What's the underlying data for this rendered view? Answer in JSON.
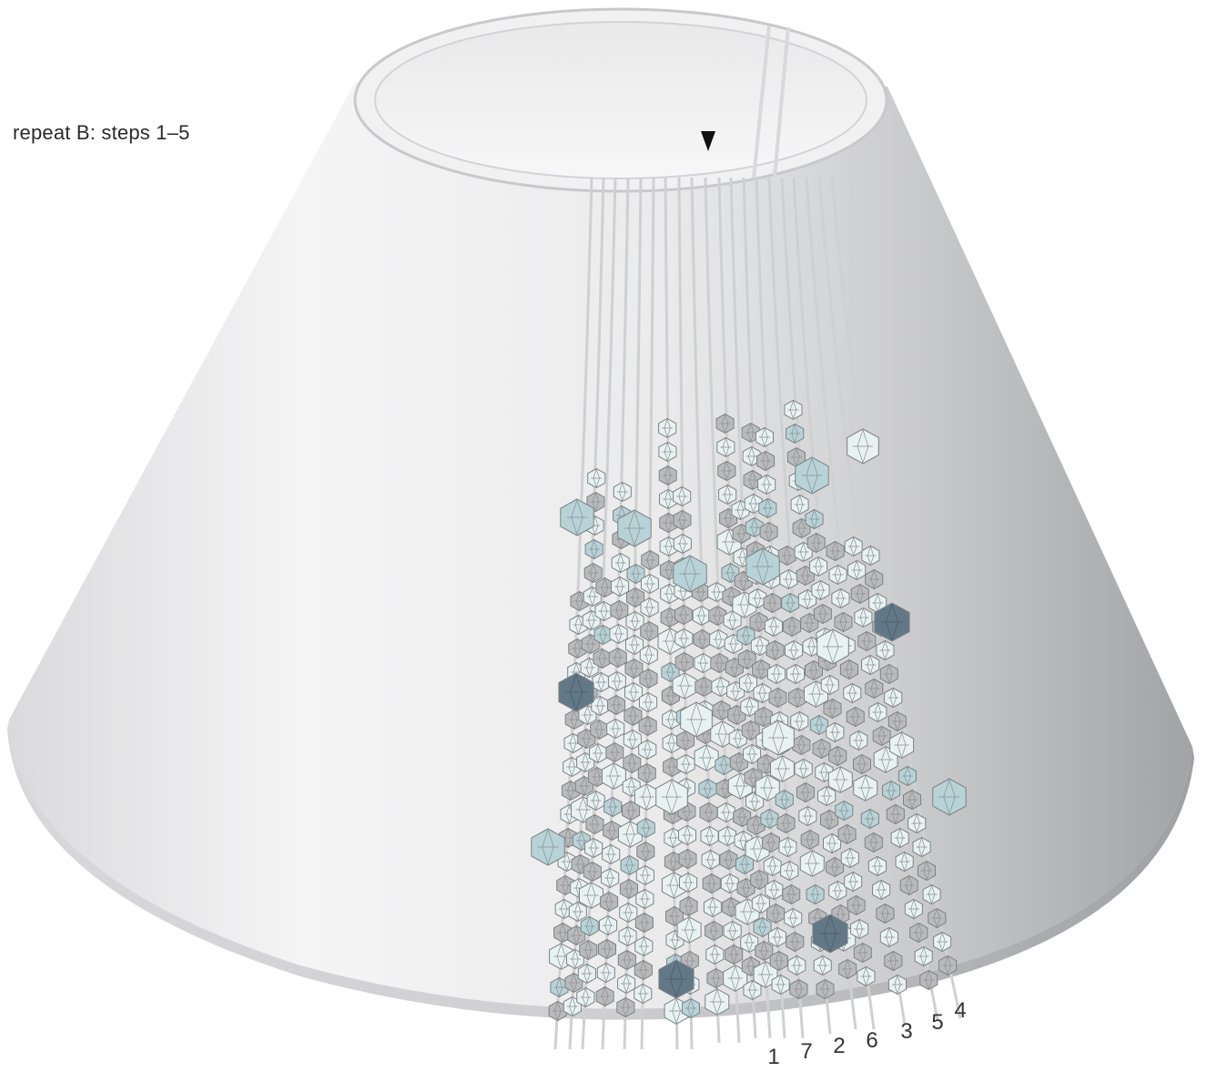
{
  "caption": "repeat B: steps 1–5",
  "strand_labels": [
    "1",
    "7",
    "2",
    "6",
    "3",
    "5",
    "4"
  ],
  "colors": {
    "shade_light": "#f4f4f5",
    "shade_mid": "#d9d9db",
    "shade_dark": "#a3a4a8",
    "rim": "#ebebed",
    "bead_clear": "#e8f2f3",
    "bead_gray": "#b9babc",
    "bead_blue": "#b7d3d8",
    "bead_dark": "#627887",
    "bead_edge": "#7d8184",
    "cord": "#cfd0d2",
    "marker": "#111111"
  },
  "icons": {
    "marker": "start-marker-arrow-icon"
  }
}
